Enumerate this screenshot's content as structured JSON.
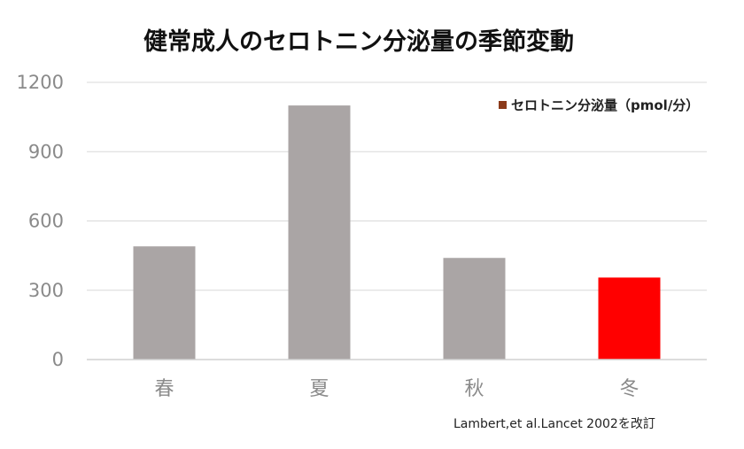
{
  "chart_data": {
    "type": "bar",
    "title": "健常成人のセロトニン分泌量の季節変動",
    "categories": [
      "春",
      "夏",
      "秋",
      "冬"
    ],
    "series": [
      {
        "name": "セロトニン分泌量（pmol/分）",
        "values": [
          490,
          1100,
          440,
          355
        ],
        "colors": [
          "#aaa5a5",
          "#aaa5a5",
          "#aaa5a5",
          "#ff0000"
        ]
      }
    ],
    "y_ticks": [
      "0",
      "300",
      "600",
      "900",
      "1200"
    ],
    "ylim": [
      0,
      1200
    ],
    "grid": true,
    "legend": {
      "position": "top-right",
      "swatch_color": "#8b3a1a"
    },
    "source": "Lambert,et al.Lancet 2002を改訂"
  }
}
